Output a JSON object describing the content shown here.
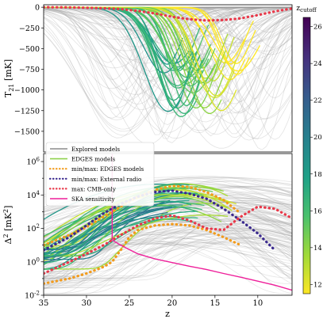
{
  "chart_data": [
    {
      "type": "line",
      "panel": "top",
      "ylabel": "T21 [mK]",
      "ylabel_main": "T",
      "ylabel_sub": "21",
      "ylabel_unit": " [mK]",
      "xlim": [
        35,
        6
      ],
      "ylim": [
        -1750,
        30
      ],
      "yticks": [
        0,
        -250,
        -500,
        -750,
        -1000,
        -1250,
        -1500
      ],
      "ytick_labels": [
        "0",
        "−250",
        "−500",
        "−750",
        "−1000",
        "−1250",
        "−1500"
      ],
      "grid": false,
      "series": [
        {
          "name": "max: CMB-only",
          "style": "dotted",
          "color": "#e8394a",
          "x": [
            35,
            32,
            30,
            28,
            26,
            24,
            22,
            20,
            18,
            16,
            14,
            12,
            10,
            8,
            6
          ],
          "y": [
            0,
            -2,
            -6,
            -12,
            -22,
            -45,
            -75,
            -115,
            -145,
            -160,
            -155,
            -135,
            -95,
            -50,
            -15
          ]
        },
        {
          "name": "EDGES models",
          "style": "band",
          "color": "#3fa37a",
          "x": [
            35,
            30,
            27,
            25,
            23,
            21,
            20,
            19,
            18,
            17,
            16,
            15,
            14,
            13,
            12
          ],
          "y": [
            0,
            -5,
            -40,
            -180,
            -520,
            -950,
            -1200,
            -1350,
            -1420,
            -1400,
            -1300,
            -1100,
            -800,
            -450,
            -150
          ]
        }
      ]
    },
    {
      "type": "line",
      "panel": "bottom",
      "xlabel": "z",
      "ylabel": "Δ2 [mK2]",
      "yscale": "log",
      "xlim": [
        35,
        6
      ],
      "ylim": [
        0.01,
        3000000
      ],
      "xticks": [
        35,
        30,
        25,
        20,
        15,
        10
      ],
      "xtick_labels": [
        "35",
        "30",
        "25",
        "20",
        "15",
        "10"
      ],
      "ytick_exponents": [
        "-2",
        "0",
        "2",
        "4",
        "6"
      ],
      "grid": false,
      "legend": {
        "placement": "upper-left",
        "entries": [
          {
            "label": "Explored models",
            "color": "#8c8c8c",
            "style": "solid"
          },
          {
            "label": "EDGES models",
            "color": "#8fd14f",
            "style": "solid"
          },
          {
            "label": "min/max: EDGES models",
            "color": "#f29b1d",
            "style": "dotted"
          },
          {
            "label": "min/max: External radio",
            "color": "#3b2a8f",
            "style": "dotted"
          },
          {
            "label": "max: CMB-only",
            "color": "#e8394a",
            "style": "dotted"
          },
          {
            "label": "SKA sensitivity",
            "color": "#ee1f9a",
            "style": "solid"
          }
        ]
      },
      "series": [
        {
          "name": "min/max: EDGES models",
          "style": "dotted",
          "color": "#f29b1d",
          "x": [
            35,
            32,
            30,
            28,
            26,
            24,
            22,
            20,
            18,
            16,
            14,
            13,
            12
          ],
          "y": [
            10,
            40,
            120,
            500,
            2000,
            8000,
            20000,
            35000,
            30000,
            15000,
            5000,
            2000,
            800
          ]
        },
        {
          "name": "min EDGES",
          "style": "dotted",
          "color": "#f29b1d",
          "x": [
            35,
            32,
            30,
            28,
            27,
            26,
            25,
            24,
            22,
            20,
            18,
            16,
            14,
            12
          ],
          "y": [
            0.05,
            0.1,
            0.2,
            0.5,
            1,
            5,
            30,
            80,
            150,
            180,
            150,
            80,
            30,
            10
          ]
        },
        {
          "name": "min/max: External radio",
          "style": "dotted",
          "color": "#3b2a8f",
          "x": [
            35,
            32,
            30,
            28,
            26,
            24,
            22,
            20,
            18,
            16,
            14,
            12,
            10,
            8
          ],
          "y": [
            5,
            30,
            150,
            800,
            3000,
            8000,
            15000,
            18000,
            12000,
            6000,
            1500,
            300,
            50,
            5
          ]
        },
        {
          "name": "max: CMB-only",
          "style": "dotted",
          "color": "#e8394a",
          "x": [
            35,
            32,
            30,
            28,
            26,
            24,
            22,
            20,
            18,
            16,
            14,
            12,
            10,
            8,
            6
          ],
          "y": [
            0.2,
            1,
            3,
            10,
            40,
            150,
            400,
            600,
            300,
            100,
            80,
            500,
            2000,
            1500,
            400
          ]
        },
        {
          "name": "SKA sensitivity",
          "style": "solid",
          "color": "#ee1f9a",
          "x": [
            27,
            26,
            24,
            22,
            20,
            18,
            16,
            14,
            12,
            10,
            8,
            6
          ],
          "y": [
            20,
            10,
            3,
            1.5,
            0.9,
            0.55,
            0.35,
            0.2,
            0.12,
            0.07,
            0.04,
            0.02
          ]
        }
      ]
    }
  ],
  "colorbar": {
    "label_main": "z",
    "label_sub": "cutoff",
    "min": 11.5,
    "max": 26.5,
    "ticks": [
      12,
      14,
      16,
      18,
      20,
      22,
      24,
      26
    ],
    "tick_labels": [
      "12",
      "14",
      "16",
      "18",
      "20",
      "22",
      "24",
      "26"
    ],
    "colors": [
      "#fde725",
      "#a0da39",
      "#4ac16d",
      "#1fa187",
      "#277f8e",
      "#365c8d",
      "#46327e",
      "#440154"
    ]
  }
}
